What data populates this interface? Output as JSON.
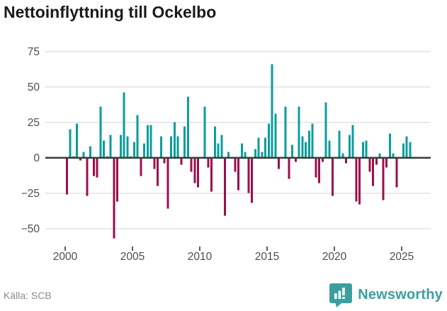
{
  "header": {
    "title": "Nettoinflyttning till Ockelbo"
  },
  "footer": {
    "source_label": "Källa: SCB",
    "brand": "Newsworthy"
  },
  "colors": {
    "positive": "#0a9d9b",
    "negative": "#9b0f4b",
    "grid": "#e2e2e2",
    "axis": "#3b3b3b",
    "tick_label": "#4d4d4d",
    "title": "#1a1a1a",
    "source": "#8b8b94",
    "brand": "#3d9e9e"
  },
  "chart_data": {
    "type": "bar",
    "title": "Nettoinflyttning till Ockelbo",
    "x_unit": "quarter",
    "start_year": 2000,
    "start_quarter": 1,
    "end_year": 2025,
    "end_quarter": 3,
    "values": [
      -26,
      20,
      1,
      24,
      -2,
      4,
      -27,
      8,
      -13,
      -14,
      36,
      12,
      1,
      16,
      -57,
      -31,
      16,
      46,
      15,
      1,
      11,
      30,
      -13,
      10,
      23,
      23,
      -8,
      -20,
      15,
      -4,
      -36,
      15,
      25,
      15,
      -5,
      22,
      43,
      -10,
      -18,
      -21,
      0,
      36,
      -7,
      -24,
      22,
      10,
      16,
      -41,
      4,
      0,
      -10,
      -23,
      10,
      4,
      -25,
      -32,
      6,
      14,
      4,
      14,
      24,
      66,
      31,
      -8,
      0,
      36,
      -15,
      9,
      -3,
      36,
      15,
      11,
      19,
      24,
      -14,
      -18,
      -3,
      39,
      12,
      -27,
      0,
      19,
      3,
      -4,
      16,
      23,
      -31,
      -33,
      11,
      12,
      -10,
      -20,
      -5,
      3,
      -30,
      -7,
      17,
      3,
      -21,
      0,
      10,
      15,
      11
    ],
    "x_tick_years": [
      2000,
      2005,
      2010,
      2015,
      2020,
      2025
    ],
    "y_ticks": [
      75,
      50,
      25,
      0,
      -25,
      -50
    ],
    "ylim": [
      -60,
      80
    ],
    "grid": true,
    "legend": false,
    "source": "SCB"
  }
}
